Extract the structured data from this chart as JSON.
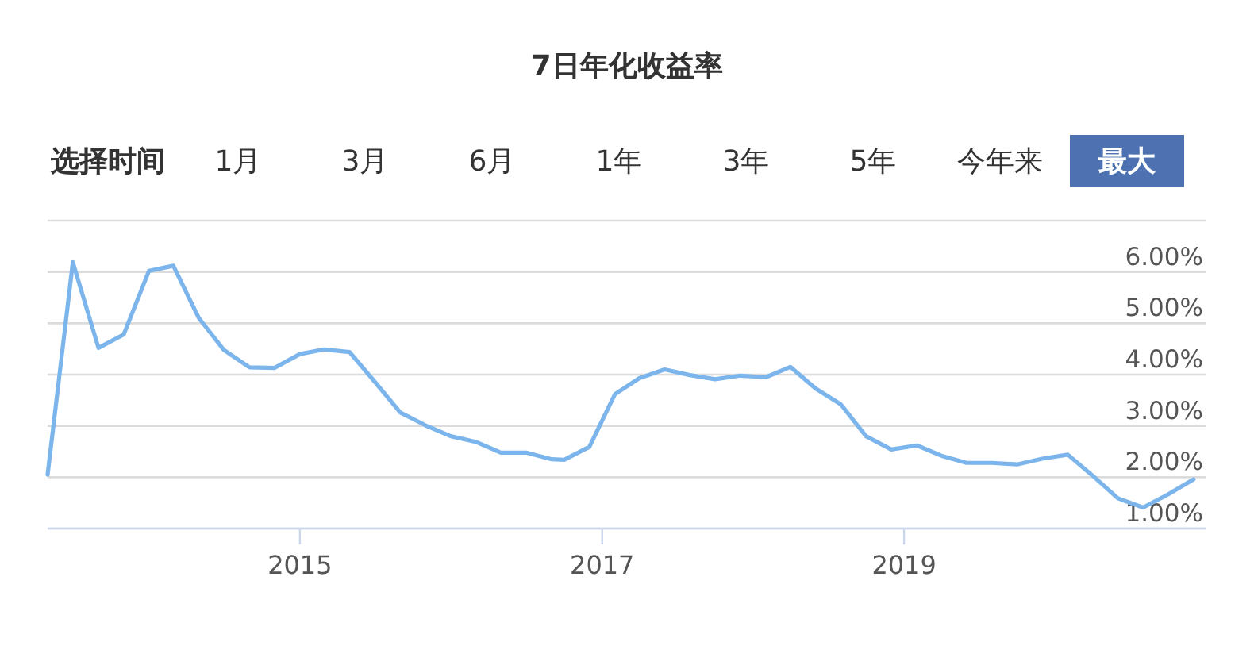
{
  "chart_data": {
    "type": "line",
    "title": "7日年化收益率",
    "annotations": [
      "选择时间",
      "1月",
      "3月",
      "6月",
      "1年",
      "3年",
      "5年",
      "今年来",
      "最大"
    ],
    "x": [
      "2013-05",
      "2013-07",
      "2013-09",
      "2013-11",
      "2014-01",
      "2014-03",
      "2014-05",
      "2014-07",
      "2014-09",
      "2014-11",
      "2015-01",
      "2015-03",
      "2015-05",
      "2015-07",
      "2015-09",
      "2015-11",
      "2016-01",
      "2016-03",
      "2016-05",
      "2016-07",
      "2016-09",
      "2016-10",
      "2016-12",
      "2017-02",
      "2017-04",
      "2017-06",
      "2017-08",
      "2017-10",
      "2017-12",
      "2018-02",
      "2018-04",
      "2018-06",
      "2018-08",
      "2018-10",
      "2018-12",
      "2019-02",
      "2019-04",
      "2019-06",
      "2019-08",
      "2019-10",
      "2019-12",
      "2020-02",
      "2020-04",
      "2020-06",
      "2020-08",
      "2020-10",
      "2020-12"
    ],
    "values": [
      2.05,
      6.19,
      4.52,
      4.78,
      6.02,
      6.12,
      5.11,
      4.48,
      4.14,
      4.13,
      4.4,
      4.49,
      4.44,
      3.86,
      3.26,
      3.01,
      2.8,
      2.69,
      2.48,
      2.48,
      2.35,
      2.34,
      2.59,
      3.62,
      3.93,
      4.1,
      3.99,
      3.91,
      3.98,
      3.95,
      4.15,
      3.73,
      3.42,
      2.8,
      2.54,
      2.62,
      2.42,
      2.28,
      2.28,
      2.25,
      2.36,
      2.44,
      2.03,
      1.59,
      1.41,
      1.67,
      1.96
    ],
    "color": "#7cb5ec",
    "xlim": [
      "2013-05",
      "2021-01"
    ],
    "xticks": [
      "2015",
      "2017",
      "2019"
    ],
    "ylim": [
      1,
      7
    ],
    "yticks": [
      {
        "value": 1,
        "label": "1.00%"
      },
      {
        "value": 2,
        "label": "2.00%"
      },
      {
        "value": 3,
        "label": "3.00%"
      },
      {
        "value": 4,
        "label": "4.00%"
      },
      {
        "value": 5,
        "label": "5.00%"
      },
      {
        "value": 6,
        "label": "6.00%"
      },
      {
        "value": 7,
        "label": null
      }
    ],
    "grid": "y"
  }
}
